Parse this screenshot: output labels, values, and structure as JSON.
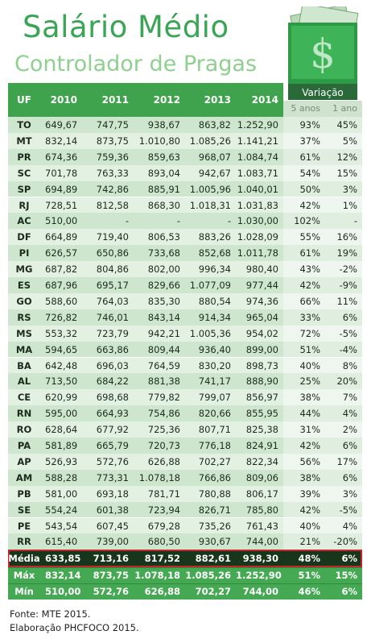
{
  "title": "Salário Médio",
  "subtitle": "Controlador de Pragas",
  "badge": "Variação",
  "table": {
    "header": [
      "UF",
      "2010",
      "2011",
      "2012",
      "2013",
      "2014"
    ],
    "subheader": [
      "5 anos",
      "1 ano"
    ],
    "rows": [
      [
        "TO",
        "649,67",
        "747,75",
        "938,67",
        "863,82",
        "1.252,90",
        "93%",
        "45%"
      ],
      [
        "MT",
        "832,14",
        "873,75",
        "1.010,80",
        "1.085,26",
        "1.141,21",
        "37%",
        "5%"
      ],
      [
        "PR",
        "674,36",
        "759,36",
        "859,63",
        "968,07",
        "1.084,74",
        "61%",
        "12%"
      ],
      [
        "SC",
        "701,78",
        "763,33",
        "893,04",
        "942,67",
        "1.083,71",
        "54%",
        "15%"
      ],
      [
        "SP",
        "694,89",
        "742,86",
        "885,91",
        "1.005,96",
        "1.040,01",
        "50%",
        "3%"
      ],
      [
        "RJ",
        "728,51",
        "812,58",
        "868,30",
        "1.018,31",
        "1.031,83",
        "42%",
        "1%"
      ],
      [
        "AC",
        "510,00",
        "-",
        "-",
        "-",
        "1.030,00",
        "102%",
        "-"
      ],
      [
        "DF",
        "664,89",
        "719,40",
        "806,53",
        "883,26",
        "1.028,09",
        "55%",
        "16%"
      ],
      [
        "PI",
        "626,57",
        "650,86",
        "733,68",
        "852,68",
        "1.011,78",
        "61%",
        "19%"
      ],
      [
        "MG",
        "687,82",
        "804,86",
        "802,00",
        "996,34",
        "980,40",
        "43%",
        "-2%"
      ],
      [
        "ES",
        "687,96",
        "695,17",
        "829,66",
        "1.077,09",
        "977,44",
        "42%",
        "-9%"
      ],
      [
        "GO",
        "588,60",
        "764,03",
        "835,30",
        "880,54",
        "974,36",
        "66%",
        "11%"
      ],
      [
        "RS",
        "726,82",
        "746,01",
        "843,14",
        "914,34",
        "965,04",
        "33%",
        "6%"
      ],
      [
        "MS",
        "553,32",
        "723,79",
        "942,21",
        "1.005,36",
        "954,02",
        "72%",
        "-5%"
      ],
      [
        "MA",
        "594,65",
        "663,86",
        "809,44",
        "936,40",
        "899,00",
        "51%",
        "-4%"
      ],
      [
        "BA",
        "642,48",
        "696,03",
        "764,59",
        "830,20",
        "898,73",
        "40%",
        "8%"
      ],
      [
        "AL",
        "713,50",
        "684,22",
        "881,38",
        "741,17",
        "888,90",
        "25%",
        "20%"
      ],
      [
        "CE",
        "620,99",
        "698,68",
        "779,82",
        "799,07",
        "856,97",
        "38%",
        "7%"
      ],
      [
        "RN",
        "595,00",
        "664,93",
        "754,86",
        "820,66",
        "855,95",
        "44%",
        "4%"
      ],
      [
        "RO",
        "628,64",
        "677,92",
        "725,36",
        "807,71",
        "825,38",
        "31%",
        "2%"
      ],
      [
        "PA",
        "581,89",
        "665,79",
        "720,73",
        "776,18",
        "824,91",
        "42%",
        "6%"
      ],
      [
        "AP",
        "526,93",
        "572,76",
        "626,88",
        "702,27",
        "822,34",
        "56%",
        "17%"
      ],
      [
        "AM",
        "588,28",
        "773,31",
        "1.078,18",
        "766,86",
        "809,06",
        "38%",
        "6%"
      ],
      [
        "PB",
        "581,00",
        "693,18",
        "781,71",
        "780,88",
        "806,17",
        "39%",
        "3%"
      ],
      [
        "SE",
        "554,24",
        "601,38",
        "723,94",
        "826,71",
        "785,80",
        "42%",
        "-5%"
      ],
      [
        "PE",
        "543,54",
        "607,45",
        "679,28",
        "735,26",
        "761,43",
        "40%",
        "4%"
      ],
      [
        "RR",
        "615,40",
        "739,00",
        "680,50",
        "930,67",
        "744,00",
        "21%",
        "-20%"
      ]
    ],
    "summary": [
      [
        "Média",
        "633,85",
        "713,16",
        "817,52",
        "882,61",
        "938,30",
        "48%",
        "6%"
      ],
      [
        "Máx",
        "832,14",
        "873,75",
        "1.078,18",
        "1.085,26",
        "1.252,90",
        "51%",
        "15%"
      ],
      [
        "Mín",
        "510,00",
        "572,76",
        "626,88",
        "702,27",
        "744,00",
        "46%",
        "6%"
      ]
    ]
  },
  "footer": [
    "Fonte: MTE 2015.",
    "Elaboração PHCFOCO 2015."
  ]
}
